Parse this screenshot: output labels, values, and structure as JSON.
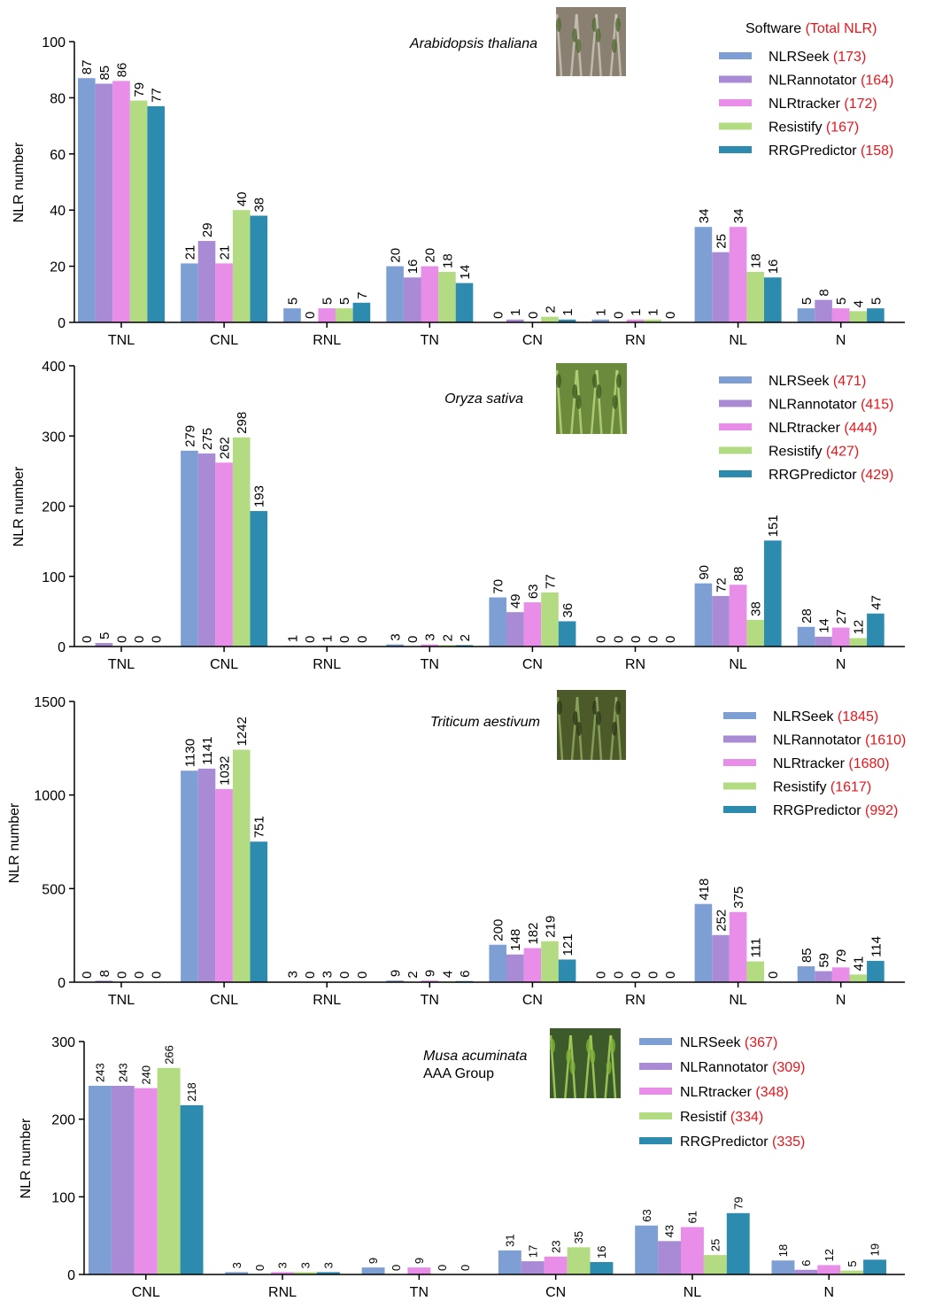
{
  "colors": {
    "NLRSeek": "#7e9fd4",
    "NLRannotator": "#a98ad4",
    "NLRtracker": "#e88ee8",
    "Resistify": "#b3dc82",
    "Resistif": "#b3dc82",
    "RRGPredictor": "#2e8bb0",
    "total_highlight": "#e8161c",
    "axis": "#000000"
  },
  "chart_data": [
    {
      "type": "bar",
      "species": [
        "Arabidopsis thaliana"
      ],
      "ylabel": "NLR number",
      "ylim": [
        0,
        100
      ],
      "yticks": [
        0,
        20,
        40,
        60,
        80,
        100
      ],
      "categories": [
        "TNL",
        "CNL",
        "RNL",
        "TN",
        "CN",
        "RN",
        "NL",
        "N"
      ],
      "legend_header": {
        "label": "Software",
        "total": "(Total NLR)"
      },
      "species_image": "arabidopsis-photo",
      "series": [
        {
          "name": "NLRSeek",
          "total": "(173)",
          "values": [
            87,
            21,
            5,
            20,
            0,
            1,
            34,
            5
          ]
        },
        {
          "name": "NLRannotator",
          "total": "(164)",
          "values": [
            85,
            29,
            0,
            16,
            1,
            0,
            25,
            8
          ]
        },
        {
          "name": "NLRtracker",
          "total": "(172)",
          "values": [
            86,
            21,
            5,
            20,
            0,
            1,
            34,
            5
          ]
        },
        {
          "name": "Resistify",
          "total": "(167)",
          "values": [
            79,
            40,
            5,
            18,
            2,
            1,
            18,
            4
          ]
        },
        {
          "name": "RRGPredictor",
          "total": "(158)",
          "values": [
            77,
            38,
            7,
            14,
            1,
            0,
            16,
            5
          ]
        }
      ]
    },
    {
      "type": "bar",
      "species": [
        "Oryza sativa"
      ],
      "ylabel": "NLR number",
      "ylim": [
        0,
        400
      ],
      "yticks": [
        0,
        100,
        200,
        300,
        400
      ],
      "categories": [
        "TNL",
        "CNL",
        "RNL",
        "TN",
        "CN",
        "RN",
        "NL",
        "N"
      ],
      "species_image": "rice-photo",
      "series": [
        {
          "name": "NLRSeek",
          "total": "(471)",
          "values": [
            0,
            279,
            1,
            3,
            70,
            0,
            90,
            28
          ]
        },
        {
          "name": "NLRannotator",
          "total": "(415)",
          "values": [
            5,
            275,
            0,
            0,
            49,
            0,
            72,
            14
          ]
        },
        {
          "name": "NLRtracker",
          "total": "(444)",
          "values": [
            0,
            262,
            1,
            3,
            63,
            0,
            88,
            27
          ]
        },
        {
          "name": "Resistify",
          "total": "(427)",
          "values": [
            0,
            298,
            0,
            2,
            77,
            0,
            38,
            12
          ]
        },
        {
          "name": "RRGPredictor",
          "total": "(429)",
          "values": [
            0,
            193,
            0,
            2,
            36,
            0,
            151,
            47
          ]
        }
      ]
    },
    {
      "type": "bar",
      "species": [
        "Triticum aestivum"
      ],
      "ylabel": "NLR number",
      "ylim": [
        0,
        1500
      ],
      "yticks": [
        0,
        500,
        1000,
        1500
      ],
      "categories": [
        "TNL",
        "CNL",
        "RNL",
        "TN",
        "CN",
        "RN",
        "NL",
        "N"
      ],
      "species_image": "wheat-photo",
      "series": [
        {
          "name": "NLRSeek",
          "total": "(1845)",
          "values": [
            0,
            1130,
            3,
            9,
            200,
            0,
            418,
            85
          ]
        },
        {
          "name": "NLRannotator",
          "total": "(1610)",
          "values": [
            8,
            1141,
            0,
            2,
            148,
            0,
            252,
            59
          ]
        },
        {
          "name": "NLRtracker",
          "total": "(1680)",
          "values": [
            0,
            1032,
            3,
            9,
            182,
            0,
            375,
            79
          ]
        },
        {
          "name": "Resistify",
          "total": "(1617)",
          "values": [
            0,
            1242,
            0,
            4,
            219,
            0,
            111,
            41
          ]
        },
        {
          "name": "RRGPredictor",
          "total": "(992)",
          "values": [
            0,
            751,
            0,
            6,
            121,
            0,
            0,
            114
          ]
        }
      ]
    },
    {
      "type": "bar",
      "species": [
        "Musa acuminata",
        "AAA Group"
      ],
      "ylabel": "NLR number",
      "ylim": [
        0,
        300
      ],
      "yticks": [
        0,
        100,
        200,
        300
      ],
      "categories": [
        "CNL",
        "RNL",
        "TN",
        "CN",
        "NL",
        "N"
      ],
      "species_image": "banana-photo",
      "series": [
        {
          "name": "NLRSeek",
          "total": "(367)",
          "values": [
            243,
            3,
            9,
            31,
            63,
            18
          ]
        },
        {
          "name": "NLRannotator",
          "total": "(309)",
          "values": [
            243,
            0,
            0,
            17,
            43,
            6
          ]
        },
        {
          "name": "NLRtracker",
          "total": "(348)",
          "values": [
            240,
            3,
            9,
            23,
            61,
            12
          ]
        },
        {
          "name": "Resistif",
          "total": "(334)",
          "values": [
            266,
            3,
            0,
            35,
            25,
            5
          ]
        },
        {
          "name": "RRGPredictor",
          "total": "(335)",
          "values": [
            218,
            3,
            0,
            16,
            79,
            19
          ]
        }
      ]
    }
  ]
}
